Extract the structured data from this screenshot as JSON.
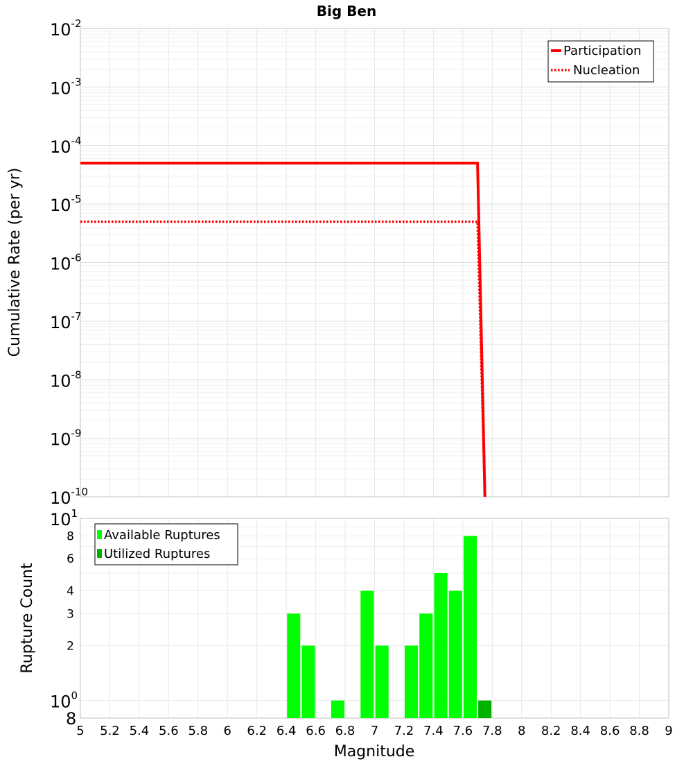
{
  "chart_data": [
    {
      "type": "line",
      "title": "Big Ben",
      "ylabel": "Cumulative Rate (per yr)",
      "xlim": [
        5,
        9
      ],
      "ylim": [
        1e-10,
        0.01
      ],
      "yscale": "log",
      "grid": true,
      "legend_position": "top-right",
      "y_tick_labels": [
        {
          "base": "10",
          "exp": "-2"
        },
        {
          "base": "10",
          "exp": "-3"
        },
        {
          "base": "10",
          "exp": "-4"
        },
        {
          "base": "10",
          "exp": "-5"
        },
        {
          "base": "10",
          "exp": "-6"
        },
        {
          "base": "10",
          "exp": "-7"
        },
        {
          "base": "10",
          "exp": "-8"
        },
        {
          "base": "10",
          "exp": "-9"
        },
        {
          "base": "10",
          "exp": "-10"
        }
      ],
      "series": [
        {
          "name": "Participation",
          "style": "solid",
          "color": "#ff0000",
          "points": [
            [
              5.0,
              5e-05
            ],
            [
              7.7,
              5e-05
            ],
            [
              7.75,
              1e-10
            ]
          ]
        },
        {
          "name": "Nucleation",
          "style": "dotted",
          "color": "#ff0000",
          "points": [
            [
              5.0,
              5e-06
            ],
            [
              7.7,
              5e-06
            ],
            [
              7.75,
              1e-10
            ]
          ]
        }
      ]
    },
    {
      "type": "bar",
      "xlabel": "Magnitude",
      "ylabel": "Rupture Count",
      "xlim": [
        5,
        9
      ],
      "ylim": [
        0.8,
        10
      ],
      "yscale": "log",
      "grid": true,
      "legend_position": "top-left",
      "x_tick_labels": [
        "5",
        "5.2",
        "5.4",
        "5.6",
        "5.8",
        "6",
        "6.2",
        "6.4",
        "6.6",
        "6.8",
        "7",
        "7.2",
        "7.4",
        "7.6",
        "7.8",
        "8",
        "8.2",
        "8.4",
        "8.6",
        "8.8",
        "9"
      ],
      "y_tick_labels": {
        "top": {
          "base": "10",
          "exp": "1"
        },
        "upper": [
          {
            "text": "8",
            "value": 8
          },
          {
            "text": "6",
            "value": 6
          },
          {
            "text": "4",
            "value": 4
          },
          {
            "text": "3",
            "value": 3
          },
          {
            "text": "2",
            "value": 2
          }
        ],
        "mid": {
          "base": "10",
          "exp": "0"
        },
        "bottom": "8"
      },
      "series": [
        {
          "name": "Available Ruptures",
          "color": "#00ff00",
          "x": [
            6.45,
            6.55,
            6.75,
            6.95,
            7.05,
            7.25,
            7.35,
            7.45,
            7.55,
            7.65
          ],
          "values": [
            3,
            2,
            1,
            4,
            2,
            2,
            3,
            5,
            4,
            8
          ]
        },
        {
          "name": "Utilized Ruptures",
          "color": "#00b300",
          "x": [
            7.75
          ],
          "values": [
            1
          ]
        }
      ]
    }
  ]
}
